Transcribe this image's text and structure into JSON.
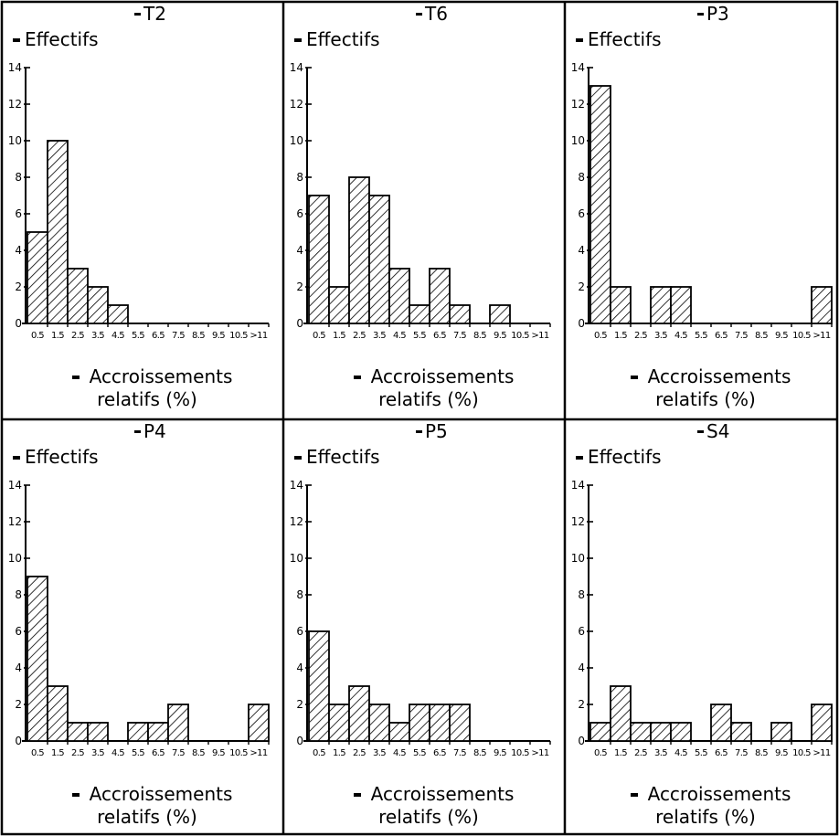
{
  "chart_data": [
    {
      "type": "bar",
      "title": "T2",
      "ylabel": "Effectifs",
      "xlabel_line1": "Accroissements",
      "xlabel_line2": "relatifs (%)",
      "categories": [
        "0.5",
        "1.5",
        "2.5",
        "3.5",
        "4.5",
        "5.5",
        "6.5",
        "7.5",
        "8.5",
        "9.5",
        "10.5",
        ">11"
      ],
      "values": [
        5,
        10,
        3,
        2,
        1,
        0,
        0,
        0,
        0,
        0,
        0,
        0
      ],
      "ylim": [
        0,
        14
      ],
      "yticks": [
        0,
        2,
        4,
        6,
        8,
        10,
        12,
        14
      ]
    },
    {
      "type": "bar",
      "title": "T6",
      "ylabel": "Effectifs",
      "xlabel_line1": "Accroissements",
      "xlabel_line2": "relatifs (%)",
      "categories": [
        "0.5",
        "1.5",
        "2.5",
        "3.5",
        "4.5",
        "5.5",
        "6.5",
        "7.5",
        "8.5",
        "9.5",
        "10.5",
        ">11"
      ],
      "values": [
        7,
        2,
        8,
        7,
        3,
        1,
        3,
        1,
        0,
        1,
        0,
        0
      ],
      "ylim": [
        0,
        14
      ],
      "yticks": [
        0,
        2,
        4,
        6,
        8,
        10,
        12,
        14
      ]
    },
    {
      "type": "bar",
      "title": "P3",
      "ylabel": "Effectifs",
      "xlabel_line1": "Accroissements",
      "xlabel_line2": "relatifs (%)",
      "categories": [
        "0.5",
        "1.5",
        "2.5",
        "3.5",
        "4.5",
        "5.5",
        "6.5",
        "7.5",
        "8.5",
        "9.5",
        "10.5",
        ">11"
      ],
      "values": [
        13,
        2,
        0,
        2,
        2,
        0,
        0,
        0,
        0,
        0,
        0,
        2
      ],
      "ylim": [
        0,
        14
      ],
      "yticks": [
        0,
        2,
        4,
        6,
        8,
        10,
        12,
        14
      ]
    },
    {
      "type": "bar",
      "title": "P4",
      "ylabel": "Effectifs",
      "xlabel_line1": "Accroissements",
      "xlabel_line2": "relatifs (%)",
      "categories": [
        "0.5",
        "1.5",
        "2.5",
        "3.5",
        "4.5",
        "5.5",
        "6.5",
        "7.5",
        "8.5",
        "9.5",
        "10.5",
        ">11"
      ],
      "values": [
        9,
        3,
        1,
        1,
        0,
        1,
        1,
        2,
        0,
        0,
        0,
        2
      ],
      "ylim": [
        0,
        14
      ],
      "yticks": [
        0,
        2,
        4,
        6,
        8,
        10,
        12,
        14
      ]
    },
    {
      "type": "bar",
      "title": "P5",
      "ylabel": "Effectifs",
      "xlabel_line1": "Accroissements",
      "xlabel_line2": "relatifs (%)",
      "categories": [
        "0.5",
        "1.5",
        "2.5",
        "3.5",
        "4.5",
        "5.5",
        "6.5",
        "7.5",
        "8.5",
        "9.5",
        "10.5",
        ">11"
      ],
      "values": [
        6,
        2,
        3,
        2,
        1,
        2,
        2,
        2,
        0,
        0,
        0,
        0
      ],
      "ylim": [
        0,
        14
      ],
      "yticks": [
        0,
        2,
        4,
        6,
        8,
        10,
        12,
        14
      ]
    },
    {
      "type": "bar",
      "title": "S4",
      "ylabel": "Effectifs",
      "xlabel_line1": "Accroissements",
      "xlabel_line2": "relatifs (%)",
      "categories": [
        "0.5",
        "1.5",
        "2.5",
        "3.5",
        "4.5",
        "5.5",
        "6.5",
        "7.5",
        "8.5",
        "9.5",
        "10.5",
        ">11"
      ],
      "values": [
        1,
        3,
        1,
        1,
        1,
        0,
        2,
        1,
        0,
        1,
        0,
        2
      ],
      "ylim": [
        0,
        14
      ],
      "yticks": [
        0,
        2,
        4,
        6,
        8,
        10,
        12,
        14
      ]
    }
  ],
  "style": {
    "ink": "#000000",
    "background": "#ffffff",
    "bar_fill": "diagonal-hatch"
  }
}
